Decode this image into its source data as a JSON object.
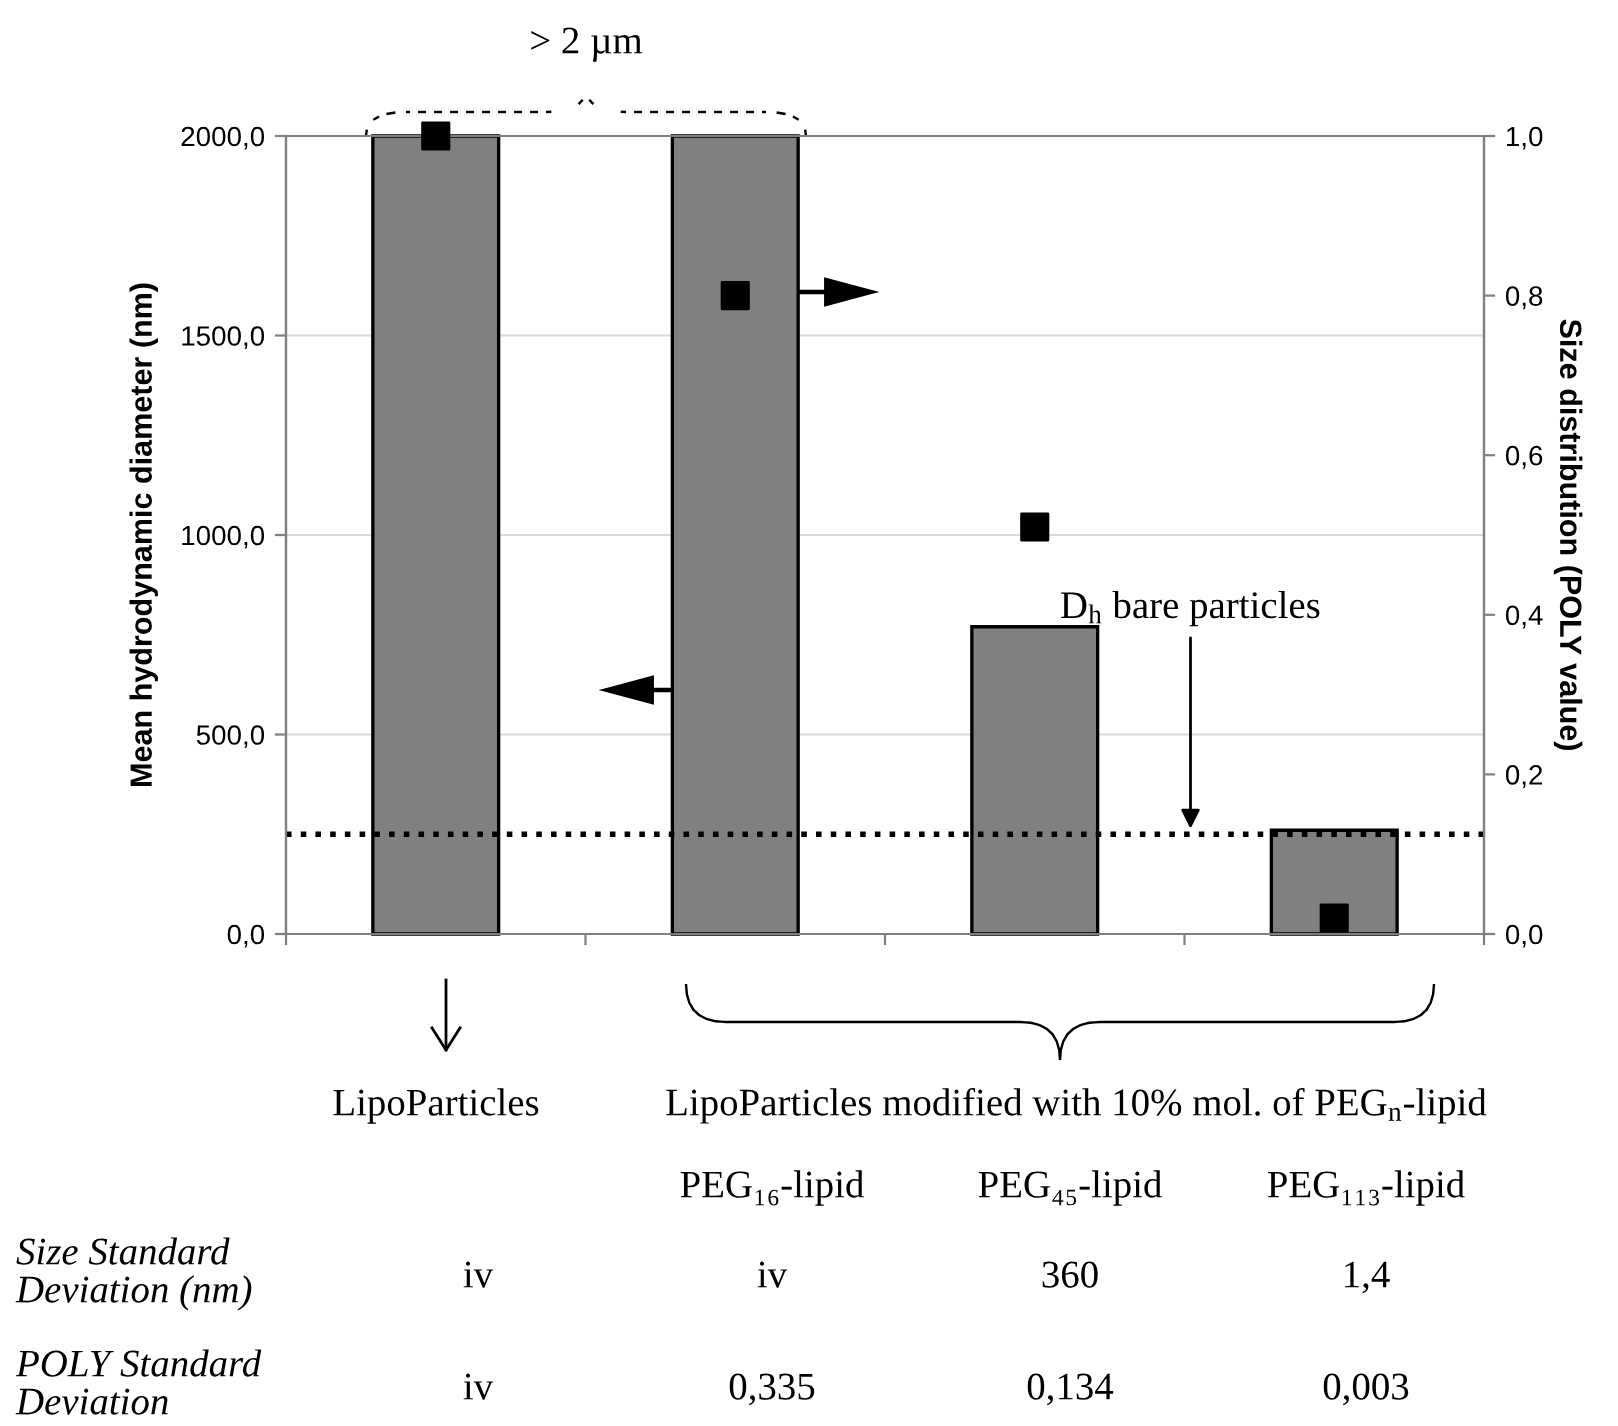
{
  "chart_data": {
    "type": "bar",
    "categories": [
      null,
      null,
      null,
      null
    ],
    "ylabel": "Mean hydrodynamic diameter (nm)",
    "y2label": "Size distribution (POLY value)",
    "series": [
      {
        "color": "#808080",
        "values": [
          2000,
          2000,
          770,
          260
        ]
      },
      {
        "type": "scatter",
        "axis": "y2",
        "color": "#000000",
        "marker": "square",
        "values": [
          1.0,
          0.8,
          0.51,
          0.02
        ]
      }
    ],
    "ylim": [
      0,
      2000
    ],
    "yticks": [
      {
        "value": 0,
        "label": "0,0"
      },
      {
        "value": 500,
        "label": "500,0"
      },
      {
        "value": 1000,
        "label": "1000,0"
      },
      {
        "value": 1500,
        "label": "1500,0"
      },
      {
        "value": 2000,
        "label": "2000,0"
      }
    ],
    "y2lim": [
      0,
      1
    ],
    "y2ticks": [
      {
        "value": 0,
        "label": "0,0"
      },
      {
        "value": 0.2,
        "label": "0,2"
      },
      {
        "value": 0.4,
        "label": "0,4"
      },
      {
        "value": 0.6,
        "label": "0,6"
      },
      {
        "value": 0.8,
        "label": "0,8"
      },
      {
        "value": 1,
        "label": "1,0"
      }
    ],
    "grid": "y",
    "legend": false,
    "ref_lines": [
      {
        "axis": "y",
        "value": 250,
        "label": "D$_{h}$ bare particles",
        "color": "#000000",
        "line_style": "dotted"
      }
    ],
    "annotations": [
      "> 2 µm",
      "LipoParticles",
      "LipoParticles modified with 10% mol. of PEG$_{n}$-lipid",
      "PEG₁₆-lipid",
      "PEG₄₅-lipid",
      "PEG₁₁₃-lipid",
      "Size Standard\nDeviation (nm)",
      "iv",
      "iv",
      "360",
      "1,4",
      "POLY Standard\nDeviation",
      "iv",
      "0,335",
      "0,134",
      "0,003"
    ]
  }
}
